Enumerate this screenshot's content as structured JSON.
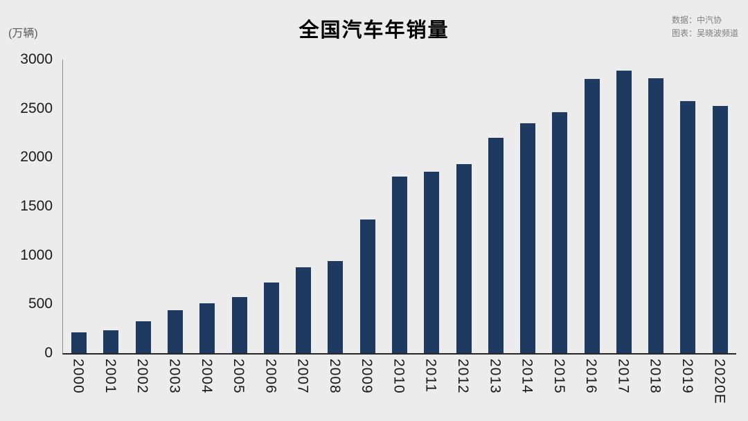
{
  "header": {
    "title": "全国汽车年销量",
    "unit_label": "(万辆)",
    "source_line1": "数据：中汽协",
    "source_line2": "图表：吴晓波频道"
  },
  "chart_data": {
    "type": "bar",
    "title": "全国汽车年销量",
    "ylabel": "(万辆)",
    "categories": [
      "2000",
      "2001",
      "2002",
      "2003",
      "2004",
      "2005",
      "2006",
      "2007",
      "2008",
      "2009",
      "2010",
      "2011",
      "2012",
      "2013",
      "2014",
      "2015",
      "2016",
      "2017",
      "2018",
      "2019",
      "2020E"
    ],
    "values": [
      209,
      236,
      325,
      439,
      507,
      576,
      722,
      879,
      938,
      1364,
      1806,
      1851,
      1931,
      2198,
      2349,
      2460,
      2803,
      2888,
      2808,
      2577,
      2527
    ],
    "ylim": [
      0,
      3000
    ],
    "yticks": [
      0,
      500,
      1000,
      1500,
      2000,
      2500,
      3000
    ],
    "grid": false,
    "legend": "none",
    "bar_color": "#1f3a60",
    "background_color": "#ececec",
    "source_text": "数据：中汽协 / 图表：吴晓波频道"
  }
}
